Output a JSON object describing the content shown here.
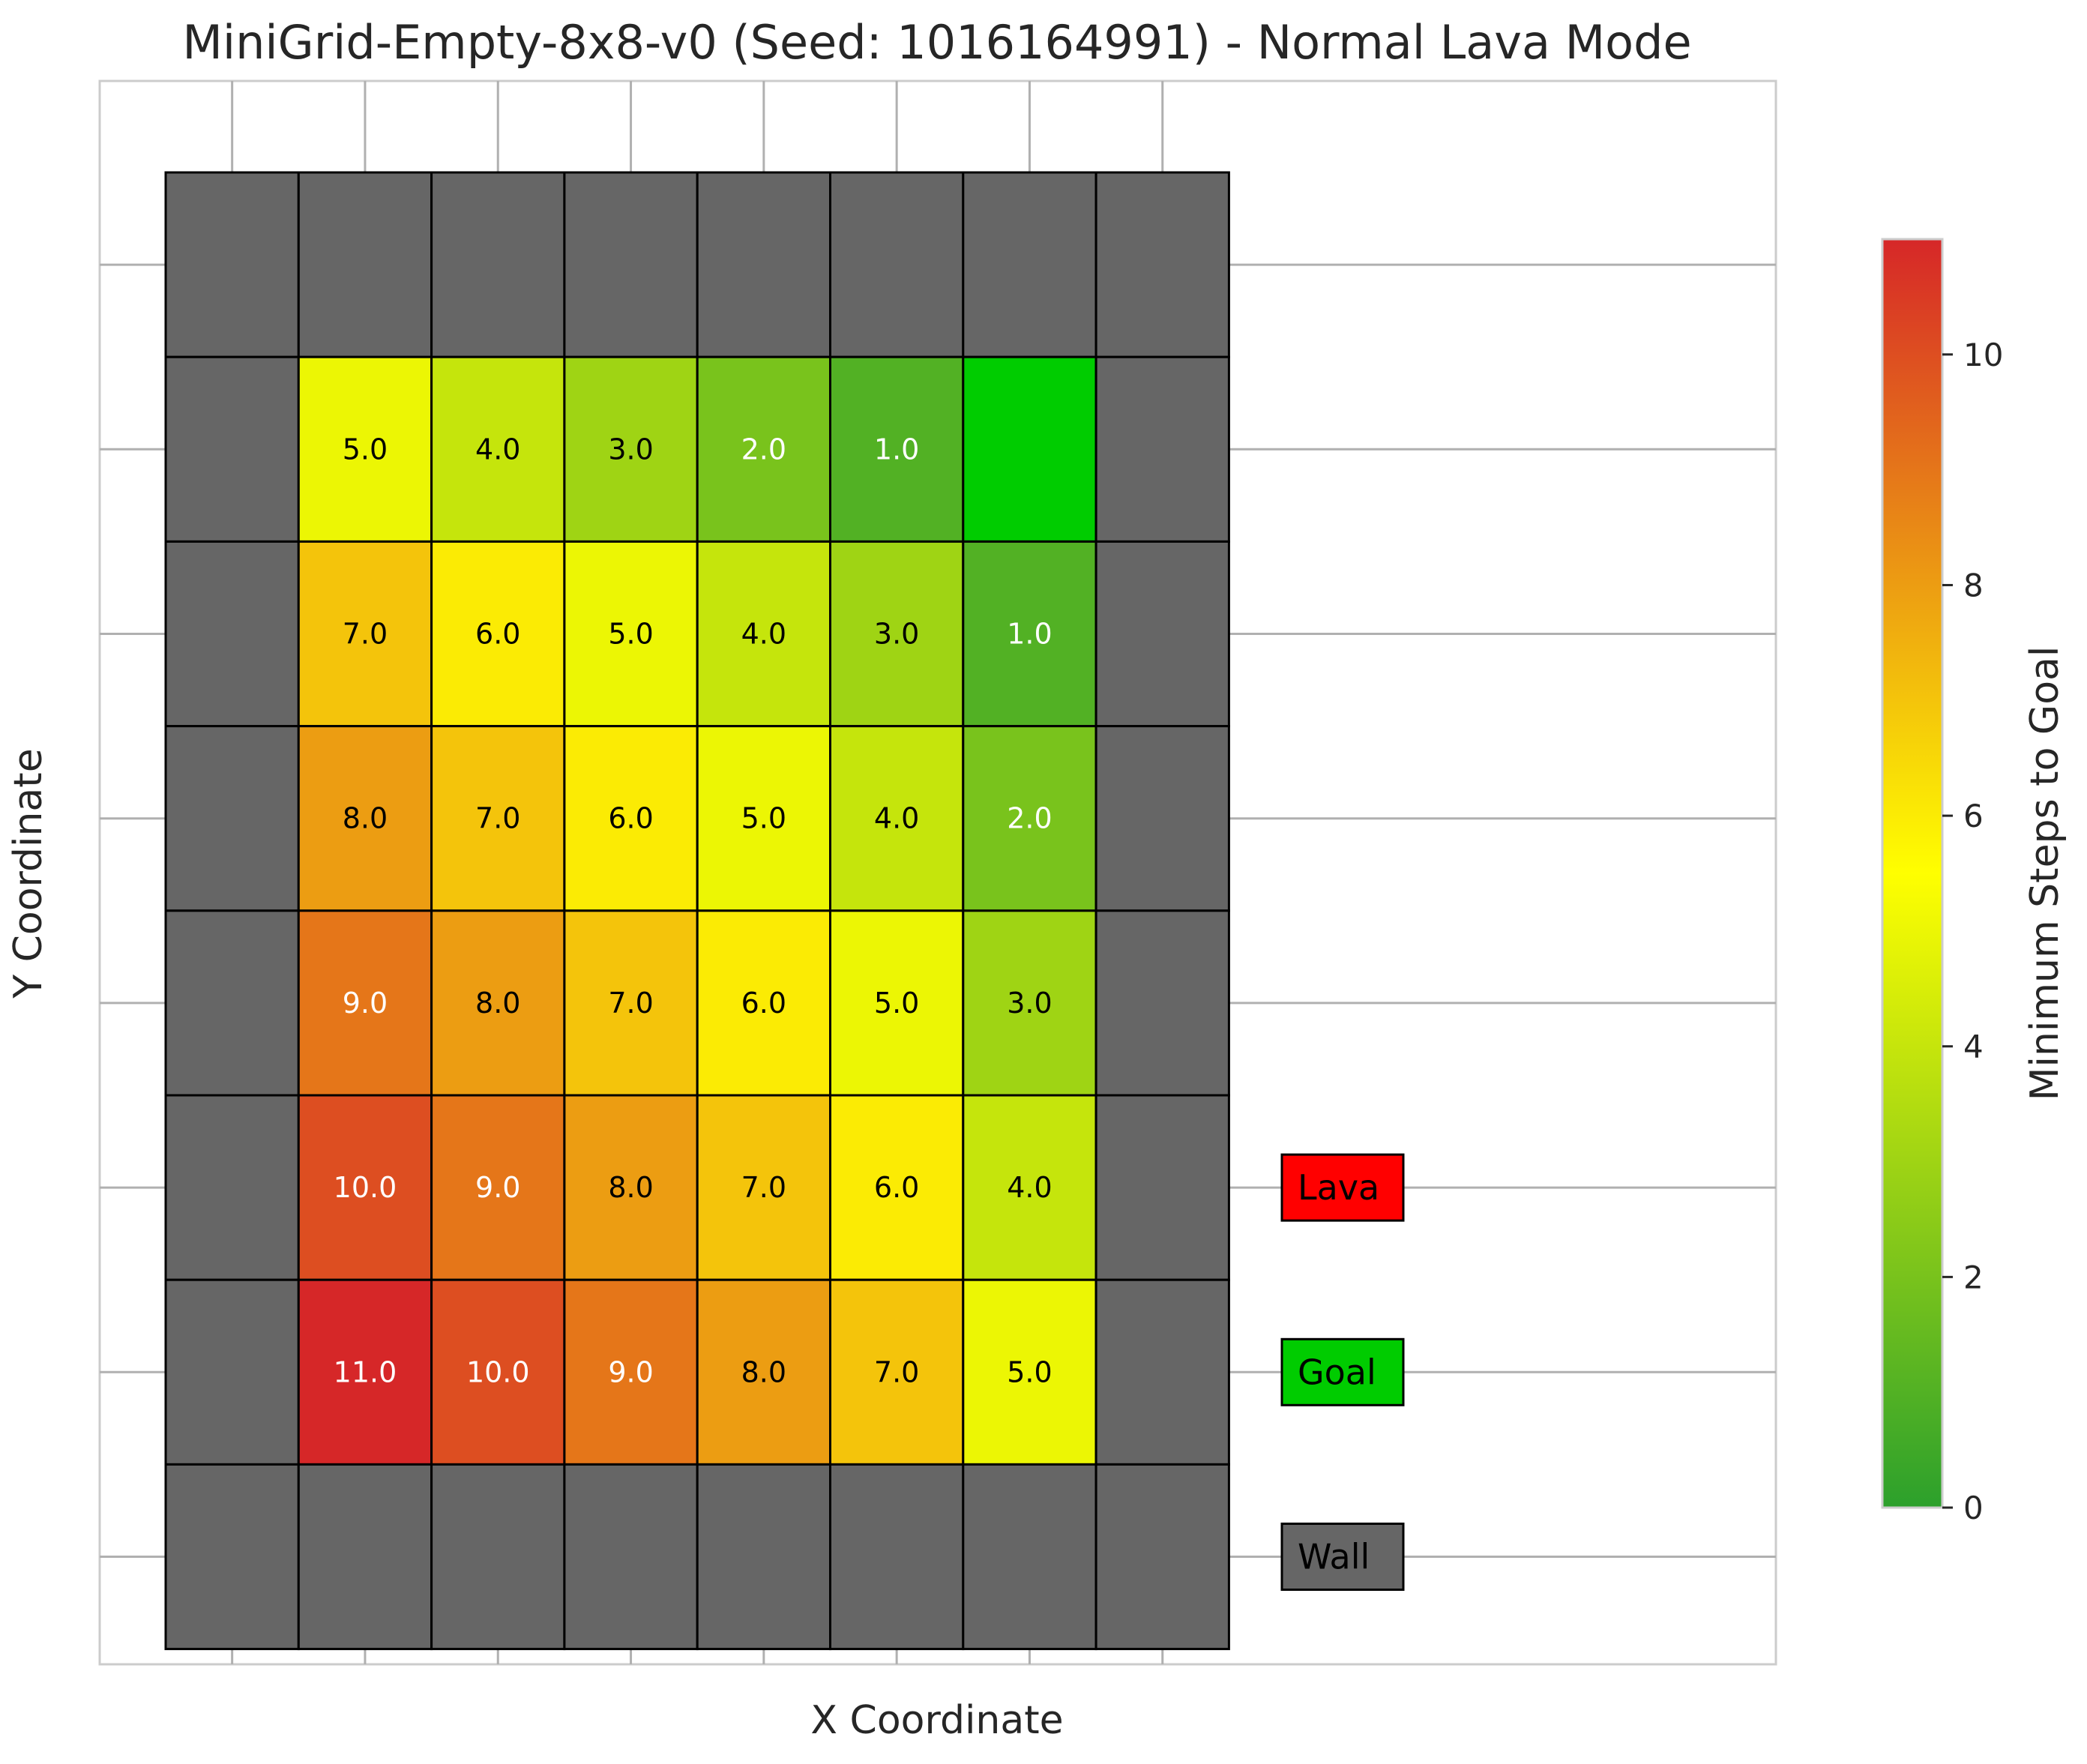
{
  "chart_data": {
    "type": "heatmap",
    "title": "MiniGrid-Empty-8x8-v0 (Seed: 1016164991) - Normal Lava Mode",
    "xlabel": "X Coordinate",
    "ylabel": "Y Coordinate",
    "grid_size": [
      8,
      8
    ],
    "legend_placement": "right",
    "grid": true,
    "colorbar": {
      "label": "Minimum Steps to Goal",
      "range": [
        0,
        11
      ],
      "ticks": [
        "0",
        "2",
        "4",
        "6",
        "8",
        "10"
      ],
      "colors": [
        "#2ca02c",
        "#ffff00",
        "#d62728"
      ]
    },
    "legend": [
      {
        "label": "Lava",
        "color": "#ff0000"
      },
      {
        "label": "Goal",
        "color": "#00cc00"
      },
      {
        "label": "Wall",
        "color": "#666666"
      }
    ],
    "wall_color": "#666666",
    "goal_color": "#00cc00",
    "cells": [
      [
        "wall",
        "wall",
        "wall",
        "wall",
        "wall",
        "wall",
        "wall",
        "wall"
      ],
      [
        "wall",
        5,
        4,
        3,
        2,
        1,
        "goal",
        "wall"
      ],
      [
        "wall",
        7,
        6,
        5,
        4,
        3,
        1,
        "wall"
      ],
      [
        "wall",
        8,
        7,
        6,
        5,
        4,
        2,
        "wall"
      ],
      [
        "wall",
        9,
        8,
        7,
        6,
        5,
        3,
        "wall"
      ],
      [
        "wall",
        10,
        9,
        8,
        7,
        6,
        4,
        "wall"
      ],
      [
        "wall",
        11,
        10,
        9,
        8,
        7,
        5,
        "wall"
      ],
      [
        "wall",
        "wall",
        "wall",
        "wall",
        "wall",
        "wall",
        "wall",
        "wall"
      ]
    ],
    "cell_labels": [
      [
        "",
        "",
        "",
        "",
        "",
        "",
        "",
        ""
      ],
      [
        "",
        "5.0",
        "4.0",
        "3.0",
        "2.0",
        "1.0",
        "",
        ""
      ],
      [
        "",
        "7.0",
        "6.0",
        "5.0",
        "4.0",
        "3.0",
        "1.0",
        ""
      ],
      [
        "",
        "8.0",
        "7.0",
        "6.0",
        "5.0",
        "4.0",
        "2.0",
        ""
      ],
      [
        "",
        "9.0",
        "8.0",
        "7.0",
        "6.0",
        "5.0",
        "3.0",
        ""
      ],
      [
        "",
        "10.0",
        "9.0",
        "8.0",
        "7.0",
        "6.0",
        "4.0",
        ""
      ],
      [
        "",
        "11.0",
        "10.0",
        "9.0",
        "8.0",
        "7.0",
        "5.0",
        ""
      ],
      [
        "",
        "",
        "",
        "",
        "",
        "",
        "",
        ""
      ]
    ]
  }
}
